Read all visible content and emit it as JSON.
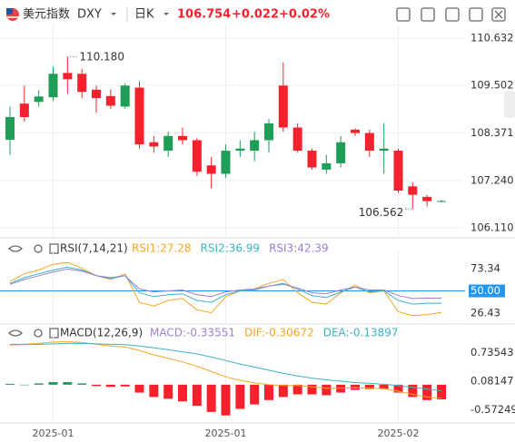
{
  "chart_data": [
    {
      "type": "candlestick",
      "title": "美元指数",
      "symbol": "DXY",
      "period": "日K",
      "price": 106.754,
      "change": "+0.022",
      "change_pct": "+0.02%",
      "up_color": "#1e9e57",
      "down_color": "#f5222d",
      "open": [
        108.21,
        109.07,
        109.11,
        109.22,
        109.8,
        109.78,
        109.4,
        109.25,
        109.0,
        109.45,
        108.15,
        107.95,
        108.3,
        108.2,
        107.6,
        107.4,
        107.95,
        107.95,
        108.2,
        109.5,
        108.5,
        107.95,
        107.5,
        107.65,
        108.45,
        108.37,
        107.95,
        107.95,
        107.1,
        106.85,
        106.74
      ],
      "high": [
        109.0,
        109.5,
        109.39,
        109.95,
        110.18,
        109.9,
        109.5,
        109.4,
        109.55,
        109.6,
        108.3,
        108.4,
        108.5,
        108.25,
        107.8,
        108.1,
        108.2,
        108.4,
        108.7,
        110.05,
        108.6,
        108.0,
        107.85,
        108.3,
        108.48,
        108.45,
        108.6,
        108.0,
        107.2,
        106.9,
        106.78
      ],
      "low": [
        107.85,
        108.64,
        109.0,
        109.13,
        109.3,
        109.2,
        108.85,
        108.95,
        108.95,
        108.0,
        107.9,
        107.8,
        108.1,
        107.35,
        107.05,
        107.3,
        107.8,
        107.7,
        107.9,
        108.4,
        107.9,
        107.5,
        107.4,
        107.55,
        108.3,
        107.8,
        107.4,
        106.95,
        106.562,
        106.62,
        106.72
      ],
      "close": [
        108.75,
        108.75,
        109.24,
        109.78,
        109.65,
        109.35,
        109.2,
        109.02,
        109.5,
        108.1,
        108.05,
        108.3,
        108.2,
        107.45,
        107.4,
        107.95,
        108.0,
        108.2,
        108.6,
        108.5,
        107.95,
        107.55,
        107.65,
        108.15,
        108.37,
        107.95,
        108.0,
        107.0,
        106.9,
        106.75,
        106.754
      ],
      "annotations": [
        {
          "label": "110.180",
          "value": 110.18,
          "index": 4
        },
        {
          "label": "106.562",
          "value": 106.562,
          "index": 28
        }
      ],
      "ylim": [
        105.92,
        110.78
      ],
      "yticks": [
        {
          "value": 110.632,
          "label": "110.632"
        },
        {
          "value": 109.502,
          "label": "109.502"
        },
        {
          "value": 108.371,
          "label": "108.371"
        },
        {
          "value": 107.24,
          "label": "107.240"
        },
        {
          "value": 106.11,
          "label": "106.110"
        }
      ],
      "grid": true
    },
    {
      "type": "line",
      "title": "RSI(7,14,21)",
      "ylim": [
        17,
        84
      ],
      "yticks": [
        73.34,
        {
          "value": 50,
          "label": "50.00"
        },
        26.43
      ],
      "reference": {
        "value": 50,
        "label": "50.00",
        "color": "#2196f3"
      },
      "series": [
        {
          "name": "RSI1:27.28",
          "color": "#f5a623",
          "values": [
            60,
            68,
            72,
            78,
            80,
            74,
            66,
            62,
            68,
            38,
            34,
            40,
            42,
            30,
            27,
            44,
            50,
            52,
            58,
            62,
            48,
            38,
            36,
            48,
            56,
            48,
            50,
            28,
            24,
            25,
            27.28
          ]
        },
        {
          "name": "RSI2:36.99",
          "color": "#3bb3c3",
          "values": [
            58,
            64,
            68,
            72,
            75,
            72,
            66,
            63,
            66,
            48,
            44,
            46,
            47,
            40,
            38,
            46,
            50,
            51,
            55,
            58,
            52,
            45,
            43,
            49,
            54,
            49,
            50,
            40,
            36,
            37,
            36.99
          ]
        },
        {
          "name": "RSI3:42.39",
          "color": "#9b7fd4",
          "values": [
            57,
            62,
            66,
            70,
            73,
            71,
            66,
            64,
            66,
            52,
            49,
            50,
            51,
            46,
            44,
            49,
            51,
            52,
            55,
            57,
            53,
            48,
            47,
            51,
            54,
            51,
            51,
            45,
            42,
            42.5,
            42.39
          ]
        }
      ]
    },
    {
      "type": "macd",
      "title": "MACD(12,26,9)",
      "ylim": [
        -0.85,
        1.01
      ],
      "yticks": [
        0.73543,
        0.08147,
        -0.57249
      ],
      "categories": [
        null,
        null,
        null,
        "2025-01",
        null,
        null,
        null,
        null,
        null,
        null,
        null,
        null,
        null,
        null,
        null,
        "2025-01",
        null,
        null,
        null,
        null,
        null,
        null,
        null,
        null,
        null,
        null,
        null,
        "2025-02",
        null,
        null,
        null
      ],
      "series": [
        {
          "name": "MACD:-0.33551",
          "color": "#9b7fd4",
          "up_color": "#1e9e57",
          "down_color": "#f5222d",
          "values": [
            0.02,
            0.0,
            0.03,
            0.06,
            0.06,
            0.03,
            -0.03,
            -0.05,
            -0.04,
            -0.18,
            -0.28,
            -0.32,
            -0.38,
            -0.48,
            -0.62,
            -0.7,
            -0.55,
            -0.45,
            -0.35,
            -0.28,
            -0.22,
            -0.22,
            -0.24,
            -0.18,
            -0.12,
            -0.1,
            -0.1,
            -0.18,
            -0.28,
            -0.35,
            -0.33551
          ]
        },
        {
          "name": "DIF:-0.30672",
          "color": "#f5a623",
          "values": [
            0.9,
            0.92,
            0.94,
            0.97,
            0.98,
            0.96,
            0.92,
            0.88,
            0.86,
            0.78,
            0.68,
            0.6,
            0.52,
            0.42,
            0.3,
            0.18,
            0.1,
            0.04,
            0.0,
            -0.02,
            -0.02,
            -0.05,
            -0.08,
            -0.08,
            -0.07,
            -0.08,
            -0.09,
            -0.15,
            -0.22,
            -0.28,
            -0.30672
          ]
        },
        {
          "name": "DEA:-0.13897",
          "color": "#3bb3c3",
          "values": [
            0.92,
            0.92,
            0.92,
            0.93,
            0.94,
            0.94,
            0.93,
            0.92,
            0.91,
            0.88,
            0.84,
            0.8,
            0.75,
            0.7,
            0.63,
            0.55,
            0.47,
            0.4,
            0.33,
            0.26,
            0.2,
            0.15,
            0.11,
            0.08,
            0.05,
            0.03,
            0.01,
            -0.02,
            -0.06,
            -0.1,
            -0.13897
          ]
        }
      ]
    }
  ]
}
